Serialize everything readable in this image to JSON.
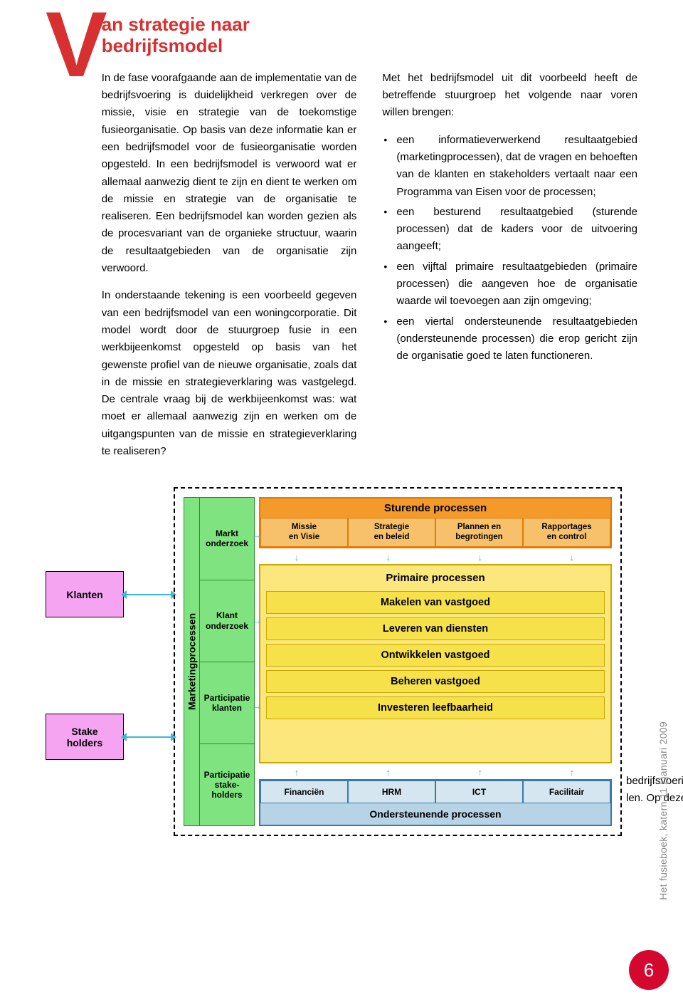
{
  "title_line1": "an strategie naar",
  "title_line2": "bedrijfsmodel",
  "dropcap": "V",
  "left_para1": "In de fase voorafgaande aan de implementatie van de bedrijfsvoering is duidelijkheid verkregen over de missie, visie en strategie van de toekomstige fusieorganisatie. Op basis van deze informatie kan er een bedrijfsmodel voor de fusieorganisatie worden opgesteld. In een bedrijfsmodel is verwoord wat er allemaal aanwezig dient te zijn en dient te werken om de missie en strategie van de organisatie te realiseren. Een bedrijfsmodel kan worden gezien als de procesvariant van de organieke structuur, waarin de resultaatgebieden van de organisatie zijn verwoord.",
  "left_para2": "In onderstaande tekening is een voorbeeld gegeven van een bedrijfsmodel van een woningcorporatie. Dit model wordt door de stuurgroep fusie in een werkbijeenkomst opgesteld op basis van het gewenste profiel van de nieuwe organisatie, zoals dat in de missie en strategieverklaring was vastgelegd. De centrale vraag bij de werkbijeenkomst was: wat moet er allemaal aanwezig zijn en werken om de uitgangspunten van de missie en strategieverklaring te realiseren?",
  "right_intro": "Met het bedrijfsmodel uit dit voorbeeld heeft de betreffende stuurgroep het volgende naar voren willen brengen:",
  "right_bullets": [
    "een informatieverwerkend resultaatgebied (marketingprocessen), dat de vragen en behoeften van de klanten en stakeholders vertaalt naar een Programma van Eisen voor de processen;",
    "een besturend resultaatgebied (sturende processen) dat de kaders voor de uitvoering aangeeft;",
    "een vijftal primaire resultaatgebieden (primaire processen) die aangeven hoe de organisatie waarde wil toevoegen aan zijn omgeving;",
    "een viertal ondersteunende resultaat­gebieden (ondersteunende processen) die erop gericht zijn de organisatie goed te laten functioneren."
  ],
  "diagram": {
    "ext_left": [
      "Klanten",
      "Stake\nholders"
    ],
    "ext_colors": {
      "bg": "#f5a4f2",
      "border": "#000000"
    },
    "marketing_label": "Marketingprocessen",
    "marketing_cells": [
      "Markt\nonderzoek",
      "Klant\nonderzoek",
      "Participatie\nklanten",
      "Participatie\nstake-\nholders"
    ],
    "marketing_bg": "#7fe47f",
    "sturende": {
      "header": "Sturende processen",
      "header_bg": "#f39a2a",
      "row_bg": "#f7c06b",
      "cells": [
        "Missie\nen Visie",
        "Strategie\nen beleid",
        "Plannen en\nbegrotingen",
        "Rapportages\nen control"
      ]
    },
    "primaire": {
      "header": "Primaire processen",
      "header_bg": "#fbe77c",
      "item_bg": "#f7e14a",
      "items": [
        "Makelen van vastgoed",
        "Leveren van diensten",
        "Ontwikkelen vastgoed",
        "Beheren vastgoed",
        "Investeren leefbaarheid"
      ]
    },
    "onderst": {
      "header": "Ondersteunende processen",
      "header_bg": "#b7d4e6",
      "row_bg": "#d5e6f0",
      "cells": [
        "Financiën",
        "HRM",
        "ICT",
        "Facilitair"
      ]
    },
    "arrow_color": "#3fb8d8"
  },
  "stray1": "bedrijfsvoering",
  "stray2": "len. Op deze",
  "side_label": "Het fusieboek, katern 11 | januari 2009",
  "page_number": "6"
}
